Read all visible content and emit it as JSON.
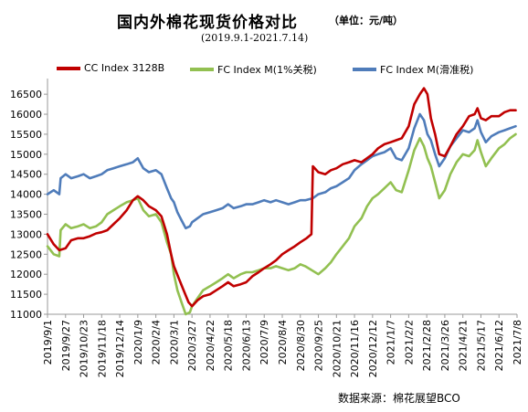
{
  "title": "国内外棉花现货价格对比",
  "unit": "（单位：元/吨）",
  "subtitle": "(2019.9.1-2021.7.14)",
  "source": "数据来源：棉花展望BCO",
  "colors": {
    "cc": "#c00000",
    "fc1": "#92c051",
    "fc2": "#4f7cba"
  },
  "chart_data": {
    "type": "line",
    "title": "国内外棉花现货价格对比",
    "subtitle": "(2019.9.1-2021.7.14)",
    "ylim": [
      11000,
      16800
    ],
    "yticks": [
      11000,
      11500,
      12000,
      12500,
      13000,
      13500,
      14000,
      14500,
      15000,
      15500,
      16000,
      16500
    ],
    "xlim": [
      "2019-09-01",
      "2021-07-08"
    ],
    "xticks": [
      "2019/9/1",
      "2019/9/27",
      "2019/10/23",
      "2019/11/18",
      "2019/12/14",
      "2020/1/9",
      "2020/2/4",
      "2020/3/1",
      "2020/3/27",
      "2020/4/22",
      "2020/5/18",
      "2020/6/13",
      "2020/7/9",
      "2020/8/4",
      "2020/8/30",
      "2020/9/25",
      "2020/10/21",
      "2020/11/16",
      "2020/12/12",
      "2021/1/7",
      "2021/2/2",
      "2021/2/28",
      "2021/3/26",
      "2021/4/21",
      "2021/5/17",
      "2021/6/12",
      "2021/7/8"
    ],
    "grid": false,
    "legend_position": "top",
    "series": [
      {
        "name": "CC Index 3128B",
        "color": "#c00000",
        "points": [
          [
            "2019-09-01",
            13000
          ],
          [
            "2019-09-10",
            12750
          ],
          [
            "2019-09-18",
            12600
          ],
          [
            "2019-09-27",
            12650
          ],
          [
            "2019-10-05",
            12850
          ],
          [
            "2019-10-15",
            12900
          ],
          [
            "2019-10-23",
            12900
          ],
          [
            "2019-11-01",
            12950
          ],
          [
            "2019-11-10",
            13020
          ],
          [
            "2019-11-18",
            13050
          ],
          [
            "2019-11-26",
            13100
          ],
          [
            "2019-12-05",
            13250
          ],
          [
            "2019-12-14",
            13400
          ],
          [
            "2019-12-24",
            13600
          ],
          [
            "2020-01-02",
            13850
          ],
          [
            "2020-01-09",
            13950
          ],
          [
            "2020-01-17",
            13850
          ],
          [
            "2020-01-25",
            13700
          ],
          [
            "2020-02-04",
            13600
          ],
          [
            "2020-02-12",
            13450
          ],
          [
            "2020-02-20",
            13000
          ],
          [
            "2020-02-26",
            12500
          ],
          [
            "2020-03-01",
            12200
          ],
          [
            "2020-03-08",
            11900
          ],
          [
            "2020-03-15",
            11600
          ],
          [
            "2020-03-22",
            11300
          ],
          [
            "2020-03-27",
            11200
          ],
          [
            "2020-04-04",
            11350
          ],
          [
            "2020-04-12",
            11450
          ],
          [
            "2020-04-22",
            11500
          ],
          [
            "2020-05-01",
            11600
          ],
          [
            "2020-05-10",
            11700
          ],
          [
            "2020-05-18",
            11800
          ],
          [
            "2020-05-26",
            11700
          ],
          [
            "2020-06-05",
            11750
          ],
          [
            "2020-06-13",
            11800
          ],
          [
            "2020-06-22",
            11950
          ],
          [
            "2020-07-01",
            12050
          ],
          [
            "2020-07-09",
            12150
          ],
          [
            "2020-07-18",
            12250
          ],
          [
            "2020-07-26",
            12350
          ],
          [
            "2020-08-04",
            12500
          ],
          [
            "2020-08-13",
            12600
          ],
          [
            "2020-08-22",
            12700
          ],
          [
            "2020-08-30",
            12800
          ],
          [
            "2020-09-08",
            12900
          ],
          [
            "2020-09-15",
            13000
          ],
          [
            "2020-09-17",
            14700
          ],
          [
            "2020-09-25",
            14550
          ],
          [
            "2020-10-05",
            14500
          ],
          [
            "2020-10-13",
            14600
          ],
          [
            "2020-10-21",
            14650
          ],
          [
            "2020-10-30",
            14750
          ],
          [
            "2020-11-08",
            14800
          ],
          [
            "2020-11-16",
            14850
          ],
          [
            "2020-11-26",
            14800
          ],
          [
            "2020-12-04",
            14900
          ],
          [
            "2020-12-12",
            15000
          ],
          [
            "2020-12-20",
            15150
          ],
          [
            "2020-12-29",
            15250
          ],
          [
            "2021-01-07",
            15300
          ],
          [
            "2021-01-15",
            15350
          ],
          [
            "2021-01-23",
            15400
          ],
          [
            "2021-02-02",
            15700
          ],
          [
            "2021-02-10",
            16250
          ],
          [
            "2021-02-18",
            16500
          ],
          [
            "2021-02-24",
            16650
          ],
          [
            "2021-03-01",
            16500
          ],
          [
            "2021-03-06",
            15900
          ],
          [
            "2021-03-12",
            15500
          ],
          [
            "2021-03-18",
            15000
          ],
          [
            "2021-03-26",
            14950
          ],
          [
            "2021-04-03",
            15200
          ],
          [
            "2021-04-12",
            15500
          ],
          [
            "2021-04-21",
            15700
          ],
          [
            "2021-04-30",
            15950
          ],
          [
            "2021-05-08",
            16000
          ],
          [
            "2021-05-12",
            16150
          ],
          [
            "2021-05-17",
            15900
          ],
          [
            "2021-05-24",
            15850
          ],
          [
            "2021-06-01",
            15950
          ],
          [
            "2021-06-12",
            15950
          ],
          [
            "2021-06-20",
            16050
          ],
          [
            "2021-06-28",
            16100
          ],
          [
            "2021-07-06",
            16100
          ]
        ]
      },
      {
        "name": "FC Index M(1%关税)",
        "color": "#92c051",
        "points": [
          [
            "2019-09-01",
            12700
          ],
          [
            "2019-09-10",
            12500
          ],
          [
            "2019-09-18",
            12450
          ],
          [
            "2019-09-20",
            13100
          ],
          [
            "2019-09-27",
            13250
          ],
          [
            "2019-10-05",
            13150
          ],
          [
            "2019-10-15",
            13200
          ],
          [
            "2019-10-23",
            13250
          ],
          [
            "2019-11-01",
            13150
          ],
          [
            "2019-11-10",
            13200
          ],
          [
            "2019-11-18",
            13300
          ],
          [
            "2019-11-26",
            13500
          ],
          [
            "2019-12-05",
            13600
          ],
          [
            "2019-12-14",
            13700
          ],
          [
            "2019-12-24",
            13800
          ],
          [
            "2020-01-02",
            13850
          ],
          [
            "2020-01-09",
            13900
          ],
          [
            "2020-01-17",
            13600
          ],
          [
            "2020-01-25",
            13450
          ],
          [
            "2020-02-04",
            13500
          ],
          [
            "2020-02-12",
            13300
          ],
          [
            "2020-02-20",
            12800
          ],
          [
            "2020-02-26",
            12500
          ],
          [
            "2020-03-01",
            12000
          ],
          [
            "2020-03-06",
            11600
          ],
          [
            "2020-03-12",
            11300
          ],
          [
            "2020-03-18",
            11000
          ],
          [
            "2020-03-24",
            11050
          ],
          [
            "2020-03-27",
            11200
          ],
          [
            "2020-04-04",
            11400
          ],
          [
            "2020-04-12",
            11600
          ],
          [
            "2020-04-22",
            11700
          ],
          [
            "2020-05-01",
            11800
          ],
          [
            "2020-05-10",
            11900
          ],
          [
            "2020-05-18",
            12000
          ],
          [
            "2020-05-26",
            11900
          ],
          [
            "2020-06-05",
            12000
          ],
          [
            "2020-06-13",
            12050
          ],
          [
            "2020-06-22",
            12050
          ],
          [
            "2020-07-01",
            12100
          ],
          [
            "2020-07-09",
            12150
          ],
          [
            "2020-07-18",
            12150
          ],
          [
            "2020-07-26",
            12200
          ],
          [
            "2020-08-04",
            12150
          ],
          [
            "2020-08-13",
            12100
          ],
          [
            "2020-08-22",
            12150
          ],
          [
            "2020-08-30",
            12250
          ],
          [
            "2020-09-06",
            12200
          ],
          [
            "2020-09-25",
            12000
          ],
          [
            "2020-10-05",
            12150
          ],
          [
            "2020-10-13",
            12300
          ],
          [
            "2020-10-21",
            12500
          ],
          [
            "2020-10-30",
            12700
          ],
          [
            "2020-11-08",
            12900
          ],
          [
            "2020-11-16",
            13200
          ],
          [
            "2020-11-26",
            13400
          ],
          [
            "2020-12-04",
            13700
          ],
          [
            "2020-12-12",
            13900
          ],
          [
            "2020-12-20",
            14000
          ],
          [
            "2020-12-29",
            14150
          ],
          [
            "2021-01-07",
            14300
          ],
          [
            "2021-01-15",
            14100
          ],
          [
            "2021-01-23",
            14050
          ],
          [
            "2021-02-02",
            14600
          ],
          [
            "2021-02-10",
            15100
          ],
          [
            "2021-02-18",
            15400
          ],
          [
            "2021-02-24",
            15200
          ],
          [
            "2021-03-01",
            14900
          ],
          [
            "2021-03-06",
            14700
          ],
          [
            "2021-03-12",
            14300
          ],
          [
            "2021-03-18",
            13900
          ],
          [
            "2021-03-26",
            14100
          ],
          [
            "2021-04-03",
            14500
          ],
          [
            "2021-04-12",
            14800
          ],
          [
            "2021-04-21",
            15000
          ],
          [
            "2021-04-30",
            14950
          ],
          [
            "2021-05-08",
            15100
          ],
          [
            "2021-05-12",
            15350
          ],
          [
            "2021-05-17",
            15050
          ],
          [
            "2021-05-24",
            14700
          ],
          [
            "2021-06-01",
            14900
          ],
          [
            "2021-06-12",
            15150
          ],
          [
            "2021-06-20",
            15250
          ],
          [
            "2021-06-28",
            15400
          ],
          [
            "2021-07-06",
            15500
          ]
        ]
      },
      {
        "name": "FC Index M(滑准税)",
        "color": "#4f7cba",
        "points": [
          [
            "2019-09-01",
            14000
          ],
          [
            "2019-09-10",
            14100
          ],
          [
            "2019-09-18",
            14000
          ],
          [
            "2019-09-20",
            14400
          ],
          [
            "2019-09-27",
            14500
          ],
          [
            "2019-10-05",
            14400
          ],
          [
            "2019-10-15",
            14450
          ],
          [
            "2019-10-23",
            14500
          ],
          [
            "2019-11-01",
            14400
          ],
          [
            "2019-11-10",
            14450
          ],
          [
            "2019-11-18",
            14500
          ],
          [
            "2019-11-26",
            14600
          ],
          [
            "2019-12-05",
            14650
          ],
          [
            "2019-12-14",
            14700
          ],
          [
            "2019-12-24",
            14750
          ],
          [
            "2020-01-02",
            14800
          ],
          [
            "2020-01-09",
            14900
          ],
          [
            "2020-01-17",
            14650
          ],
          [
            "2020-01-25",
            14550
          ],
          [
            "2020-02-04",
            14600
          ],
          [
            "2020-02-12",
            14500
          ],
          [
            "2020-02-20",
            14150
          ],
          [
            "2020-02-26",
            13900
          ],
          [
            "2020-03-01",
            13800
          ],
          [
            "2020-03-06",
            13550
          ],
          [
            "2020-03-12",
            13350
          ],
          [
            "2020-03-18",
            13150
          ],
          [
            "2020-03-24",
            13200
          ],
          [
            "2020-03-27",
            13300
          ],
          [
            "2020-04-04",
            13400
          ],
          [
            "2020-04-12",
            13500
          ],
          [
            "2020-04-22",
            13550
          ],
          [
            "2020-05-01",
            13600
          ],
          [
            "2020-05-10",
            13650
          ],
          [
            "2020-05-18",
            13750
          ],
          [
            "2020-05-26",
            13650
          ],
          [
            "2020-06-05",
            13700
          ],
          [
            "2020-06-13",
            13750
          ],
          [
            "2020-06-22",
            13750
          ],
          [
            "2020-07-01",
            13800
          ],
          [
            "2020-07-09",
            13850
          ],
          [
            "2020-07-18",
            13800
          ],
          [
            "2020-07-26",
            13850
          ],
          [
            "2020-08-04",
            13800
          ],
          [
            "2020-08-13",
            13750
          ],
          [
            "2020-08-22",
            13800
          ],
          [
            "2020-08-30",
            13850
          ],
          [
            "2020-09-06",
            13850
          ],
          [
            "2020-09-17",
            13900
          ],
          [
            "2020-09-25",
            14000
          ],
          [
            "2020-10-05",
            14050
          ],
          [
            "2020-10-13",
            14150
          ],
          [
            "2020-10-21",
            14200
          ],
          [
            "2020-10-30",
            14300
          ],
          [
            "2020-11-08",
            14400
          ],
          [
            "2020-11-16",
            14600
          ],
          [
            "2020-11-26",
            14750
          ],
          [
            "2020-12-04",
            14850
          ],
          [
            "2020-12-12",
            14950
          ],
          [
            "2020-12-20",
            15000
          ],
          [
            "2020-12-29",
            15050
          ],
          [
            "2021-01-07",
            15150
          ],
          [
            "2021-01-15",
            14900
          ],
          [
            "2021-01-23",
            14850
          ],
          [
            "2021-02-02",
            15150
          ],
          [
            "2021-02-10",
            15650
          ],
          [
            "2021-02-18",
            16000
          ],
          [
            "2021-02-24",
            15850
          ],
          [
            "2021-03-01",
            15500
          ],
          [
            "2021-03-06",
            15350
          ],
          [
            "2021-03-12",
            15000
          ],
          [
            "2021-03-18",
            14700
          ],
          [
            "2021-03-26",
            14900
          ],
          [
            "2021-04-03",
            15200
          ],
          [
            "2021-04-12",
            15400
          ],
          [
            "2021-04-21",
            15600
          ],
          [
            "2021-04-30",
            15550
          ],
          [
            "2021-05-08",
            15650
          ],
          [
            "2021-05-12",
            15850
          ],
          [
            "2021-05-17",
            15550
          ],
          [
            "2021-05-24",
            15300
          ],
          [
            "2021-06-01",
            15450
          ],
          [
            "2021-06-12",
            15550
          ],
          [
            "2021-06-20",
            15600
          ],
          [
            "2021-06-28",
            15650
          ],
          [
            "2021-07-06",
            15700
          ]
        ]
      }
    ]
  }
}
